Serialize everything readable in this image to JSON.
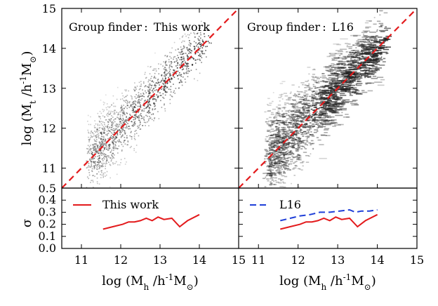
{
  "colors": {
    "identity_line": "#e31a1c",
    "this_work_line": "#e31a1c",
    "l16_line": "#1f3fd8",
    "points": "#222222"
  },
  "chart_data": [
    {
      "type": "scatter",
      "panel": "top-left",
      "title": "Group finder :  This work",
      "xlabel": "",
      "ylabel": "log (M_t /h⁻¹M_⊙)",
      "ylabel_parts": {
        "pre": "log (M",
        "sub_t": "t",
        "mid": " /h",
        "sup": "-1",
        "m": "M",
        "sub_sun": "⊙",
        "post": ")"
      },
      "xlim": [
        10.5,
        15
      ],
      "ylim": [
        10.5,
        15
      ],
      "yticks": [
        "11",
        "12",
        "13",
        "14",
        "15"
      ],
      "ytick_values": [
        11,
        12,
        13,
        14,
        15
      ],
      "yedge_label": "0.5",
      "identity_line": {
        "x": [
          10.5,
          15
        ],
        "y": [
          10.5,
          15
        ],
        "style": "dashed"
      },
      "scatter_seed": 11,
      "xrange_points": [
        11.5,
        14.3
      ],
      "spread": 0.35
    },
    {
      "type": "scatter",
      "panel": "top-right",
      "title": "Group finder :  L16",
      "xlim": [
        10.5,
        15
      ],
      "ylim": [
        10.5,
        15
      ],
      "identity_line": {
        "x": [
          10.5,
          15
        ],
        "y": [
          10.5,
          15
        ],
        "style": "dashed"
      },
      "scatter_seed": 23,
      "xrange_points": [
        11.5,
        14.3
      ],
      "spread": 0.45
    },
    {
      "type": "line",
      "panel": "bottom-left",
      "ylabel": "σ",
      "xlim": [
        10.5,
        15
      ],
      "ylim": [
        0.0,
        0.5
      ],
      "yticks": [
        "0.0",
        "0.1",
        "0.2",
        "0.3",
        "0.4"
      ],
      "ytick_values": [
        0.0,
        0.1,
        0.2,
        0.3,
        0.4
      ],
      "xticks": [
        "11",
        "12",
        "13",
        "14",
        "15"
      ],
      "xtick_values": [
        11,
        12,
        13,
        14,
        15
      ],
      "xlabel_parts": {
        "pre": "log (M",
        "sub_h": "h",
        "mid": " /h",
        "sup": "-1",
        "m": "M",
        "sub_sun": "⊙",
        "post": ")"
      },
      "legend": {
        "label": "This work",
        "position": "top-left"
      },
      "series": [
        {
          "name": "This work",
          "x": [
            11.55,
            11.8,
            12.05,
            12.2,
            12.35,
            12.5,
            12.65,
            12.8,
            12.95,
            13.1,
            13.3,
            13.5,
            13.7,
            14.0
          ],
          "y": [
            0.16,
            0.18,
            0.2,
            0.22,
            0.22,
            0.23,
            0.25,
            0.23,
            0.26,
            0.24,
            0.25,
            0.18,
            0.23,
            0.28
          ]
        }
      ]
    },
    {
      "type": "line",
      "panel": "bottom-right",
      "xlim": [
        10.5,
        15
      ],
      "ylim": [
        0.0,
        0.5
      ],
      "xticks": [
        "11",
        "12",
        "13",
        "14",
        "15"
      ],
      "xtick_values": [
        11,
        12,
        13,
        14,
        15
      ],
      "legend": {
        "label": "L16",
        "position": "top-left"
      },
      "series": [
        {
          "name": "L16",
          "style": "dashed",
          "x": [
            11.55,
            11.8,
            12.05,
            12.3,
            12.55,
            12.8,
            13.05,
            13.3,
            13.45,
            13.6,
            13.8,
            14.0
          ],
          "y": [
            0.23,
            0.25,
            0.27,
            0.28,
            0.3,
            0.3,
            0.31,
            0.32,
            0.3,
            0.31,
            0.31,
            0.32
          ]
        },
        {
          "name": "This work",
          "x": [
            11.55,
            11.8,
            12.05,
            12.2,
            12.35,
            12.5,
            12.65,
            12.8,
            12.95,
            13.1,
            13.3,
            13.5,
            13.7,
            14.0
          ],
          "y": [
            0.16,
            0.18,
            0.2,
            0.22,
            0.22,
            0.23,
            0.25,
            0.23,
            0.26,
            0.24,
            0.25,
            0.18,
            0.23,
            0.28
          ]
        }
      ]
    }
  ]
}
